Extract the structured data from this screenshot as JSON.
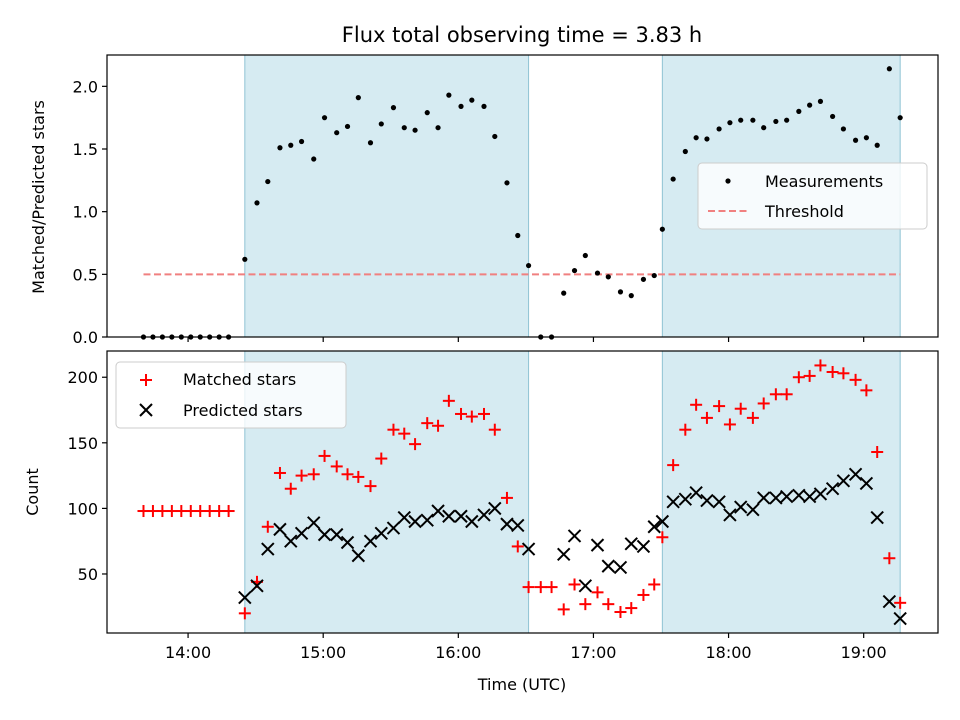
{
  "chart_data": [
    {
      "type": "scatter",
      "title": "Flux total observing time = 3.83 h",
      "xlabel": "",
      "ylabel": "Matched/Predicted stars",
      "ylim": [
        0,
        2.25
      ],
      "xlim_hours": [
        13.4,
        19.55
      ],
      "y_ticks": [
        0.0,
        0.5,
        1.0,
        1.5,
        2.0
      ],
      "y_tick_labels": [
        "0.0",
        "0.5",
        "1.0",
        "1.5",
        "2.0"
      ],
      "legend": {
        "position": "center-right",
        "entries": [
          "Measurements",
          "Threshold"
        ]
      },
      "shaded_intervals": [
        [
          14.42,
          16.52
        ],
        [
          17.51,
          19.27
        ]
      ],
      "threshold": {
        "name": "Threshold",
        "value": 0.5,
        "x_start": 13.67,
        "x_end": 19.27,
        "color": "#f08080"
      },
      "series": [
        {
          "name": "Measurements",
          "marker": "dot",
          "color": "#000000",
          "x": [
            13.67,
            13.74,
            13.81,
            13.88,
            13.95,
            14.02,
            14.09,
            14.16,
            14.23,
            14.3,
            14.42,
            14.51,
            14.59,
            14.68,
            14.76,
            14.84,
            14.93,
            15.01,
            15.1,
            15.18,
            15.26,
            15.35,
            15.43,
            15.52,
            15.6,
            15.68,
            15.77,
            15.85,
            15.93,
            16.02,
            16.1,
            16.19,
            16.27,
            16.36,
            16.44,
            16.52,
            16.61,
            16.69,
            16.78,
            16.86,
            16.94,
            17.03,
            17.11,
            17.2,
            17.28,
            17.37,
            17.45,
            17.51,
            17.59,
            17.68,
            17.76,
            17.84,
            17.93,
            18.01,
            18.09,
            18.18,
            18.26,
            18.35,
            18.43,
            18.52,
            18.6,
            18.68,
            18.77,
            18.85,
            18.94,
            19.02,
            19.1,
            19.19,
            19.27
          ],
          "y": [
            0.0,
            0.0,
            0.0,
            0.0,
            0.0,
            0.0,
            0.0,
            0.0,
            0.0,
            0.0,
            0.62,
            1.07,
            1.24,
            1.51,
            1.53,
            1.56,
            1.42,
            1.75,
            1.63,
            1.68,
            1.91,
            1.55,
            1.7,
            1.83,
            1.67,
            1.65,
            1.79,
            1.67,
            1.93,
            1.84,
            1.89,
            1.84,
            1.6,
            1.23,
            0.81,
            0.57,
            0.0,
            0.0,
            0.35,
            0.53,
            0.65,
            0.51,
            0.48,
            0.36,
            0.33,
            0.46,
            0.49,
            0.86,
            1.26,
            1.48,
            1.59,
            1.58,
            1.66,
            1.71,
            1.73,
            1.73,
            1.67,
            1.72,
            1.73,
            1.8,
            1.85,
            1.88,
            1.76,
            1.66,
            1.57,
            1.59,
            1.53,
            2.14,
            1.75
          ]
        }
      ]
    },
    {
      "type": "scatter",
      "title": "",
      "xlabel": "Time (UTC)",
      "ylabel": "Count",
      "ylim": [
        5,
        220
      ],
      "xlim_hours": [
        13.4,
        19.55
      ],
      "y_ticks": [
        50,
        100,
        150,
        200
      ],
      "y_tick_labels": [
        "50",
        "100",
        "150",
        "200"
      ],
      "x_tick_hours": [
        14,
        15,
        16,
        17,
        18,
        19
      ],
      "x_tick_labels": [
        "14:00",
        "15:00",
        "16:00",
        "17:00",
        "18:00",
        "19:00"
      ],
      "legend": {
        "position": "upper-left",
        "entries": [
          "Matched stars",
          "Predicted stars"
        ]
      },
      "shaded_intervals": [
        [
          14.42,
          16.52
        ],
        [
          17.51,
          19.27
        ]
      ],
      "series": [
        {
          "name": "Matched stars",
          "marker": "plus",
          "color": "#ff0000",
          "x": [
            13.67,
            13.74,
            13.81,
            13.88,
            13.95,
            14.02,
            14.09,
            14.16,
            14.23,
            14.3,
            14.42,
            14.51,
            14.59,
            14.68,
            14.76,
            14.84,
            14.93,
            15.01,
            15.1,
            15.18,
            15.26,
            15.35,
            15.43,
            15.52,
            15.6,
            15.68,
            15.77,
            15.85,
            15.93,
            16.02,
            16.1,
            16.19,
            16.27,
            16.36,
            16.44,
            16.52,
            16.61,
            16.69,
            16.78,
            16.86,
            16.94,
            17.03,
            17.11,
            17.2,
            17.28,
            17.37,
            17.45,
            17.51,
            17.59,
            17.68,
            17.76,
            17.84,
            17.93,
            18.01,
            18.09,
            18.18,
            18.26,
            18.35,
            18.43,
            18.52,
            18.6,
            18.68,
            18.77,
            18.85,
            18.94,
            19.02,
            19.1,
            19.19,
            19.27
          ],
          "y": [
            98,
            98,
            98,
            98,
            98,
            98,
            98,
            98,
            98,
            98,
            20,
            44,
            86,
            127,
            115,
            125,
            126,
            140,
            132,
            126,
            124,
            117,
            138,
            160,
            157,
            149,
            165,
            163,
            182,
            172,
            170,
            172,
            160,
            108,
            71,
            40,
            40,
            40,
            23,
            42,
            27,
            36,
            27,
            21,
            24,
            34,
            42,
            78,
            133,
            160,
            179,
            169,
            178,
            164,
            176,
            169,
            180,
            187,
            187,
            200,
            201,
            209,
            204,
            203,
            198,
            190,
            143,
            62,
            28
          ]
        },
        {
          "name": "Predicted stars",
          "marker": "x",
          "color": "#000000",
          "x": [
            14.42,
            14.51,
            14.59,
            14.68,
            14.76,
            14.84,
            14.93,
            15.01,
            15.1,
            15.18,
            15.26,
            15.35,
            15.43,
            15.52,
            15.6,
            15.68,
            15.77,
            15.85,
            15.93,
            16.02,
            16.1,
            16.19,
            16.27,
            16.36,
            16.44,
            16.52,
            16.78,
            16.86,
            16.94,
            17.03,
            17.11,
            17.2,
            17.28,
            17.37,
            17.45,
            17.51,
            17.59,
            17.68,
            17.76,
            17.84,
            17.93,
            18.01,
            18.09,
            18.18,
            18.26,
            18.35,
            18.43,
            18.52,
            18.6,
            18.68,
            18.77,
            18.85,
            18.94,
            19.02,
            19.1,
            19.19,
            19.27
          ],
          "y": [
            32,
            41,
            69,
            84,
            75,
            81,
            89,
            80,
            80,
            74,
            64,
            75,
            81,
            85,
            93,
            90,
            91,
            98,
            94,
            94,
            90,
            95,
            100,
            88,
            87,
            69,
            65,
            79,
            41,
            72,
            56,
            55,
            73,
            71,
            86,
            90,
            105,
            107,
            112,
            106,
            105,
            95,
            101,
            99,
            108,
            108,
            109,
            110,
            109,
            111,
            115,
            121,
            126,
            119,
            93,
            29,
            16
          ]
        }
      ]
    }
  ]
}
